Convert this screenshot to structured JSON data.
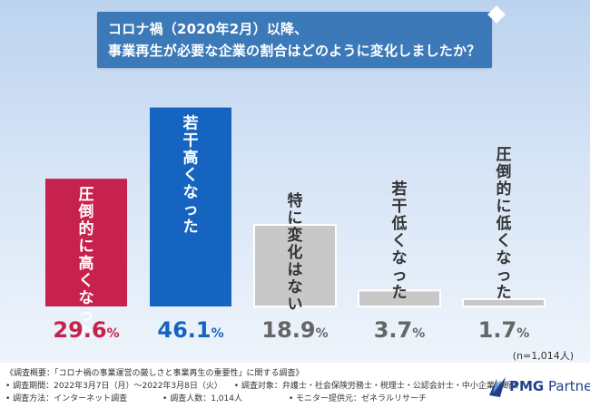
{
  "title": {
    "line1": "コロナ禍（2020年2月）以降、",
    "line2": "事業再生が必要な企業の割合はどのように変化しましたか？"
  },
  "sample_note": "(n=1,014人)",
  "colors": {
    "strong_up": "#c7224e",
    "mild_up": "#1565c0",
    "neutral": "#c8c8c8"
  },
  "chart_data": {
    "type": "bar",
    "categories": [
      "圧倒的に高くなった",
      "若干高くなった",
      "特に変化はない",
      "若干低くなった",
      "圧倒的に低くなった"
    ],
    "values": [
      29.6,
      46.1,
      18.9,
      3.7,
      1.7
    ],
    "value_labels": [
      "29.6%",
      "46.1%",
      "18.9%",
      "3.7%",
      "1.7%"
    ],
    "ylim": [
      0,
      50
    ],
    "unit": "%",
    "grid": false
  },
  "footer": {
    "line1": "《調査概要：「コロナ禍の事業運営の厳しさと事業再生の重要性」に関する調査》",
    "period": "• 調査期間：2022年3月7日（月）〜2022年3月8日（火）",
    "target": "• 調査対象：弁護士・社会保険労務士・税理士・公認会計士・中小企業診断士",
    "method": "• 調査方法：インターネット調査",
    "count": "• 調査人数：1,014人",
    "provider": "• モニター提供元：ゼネラルリサーチ"
  },
  "logo": {
    "brand": "PMG",
    "suffix": " Partners"
  }
}
